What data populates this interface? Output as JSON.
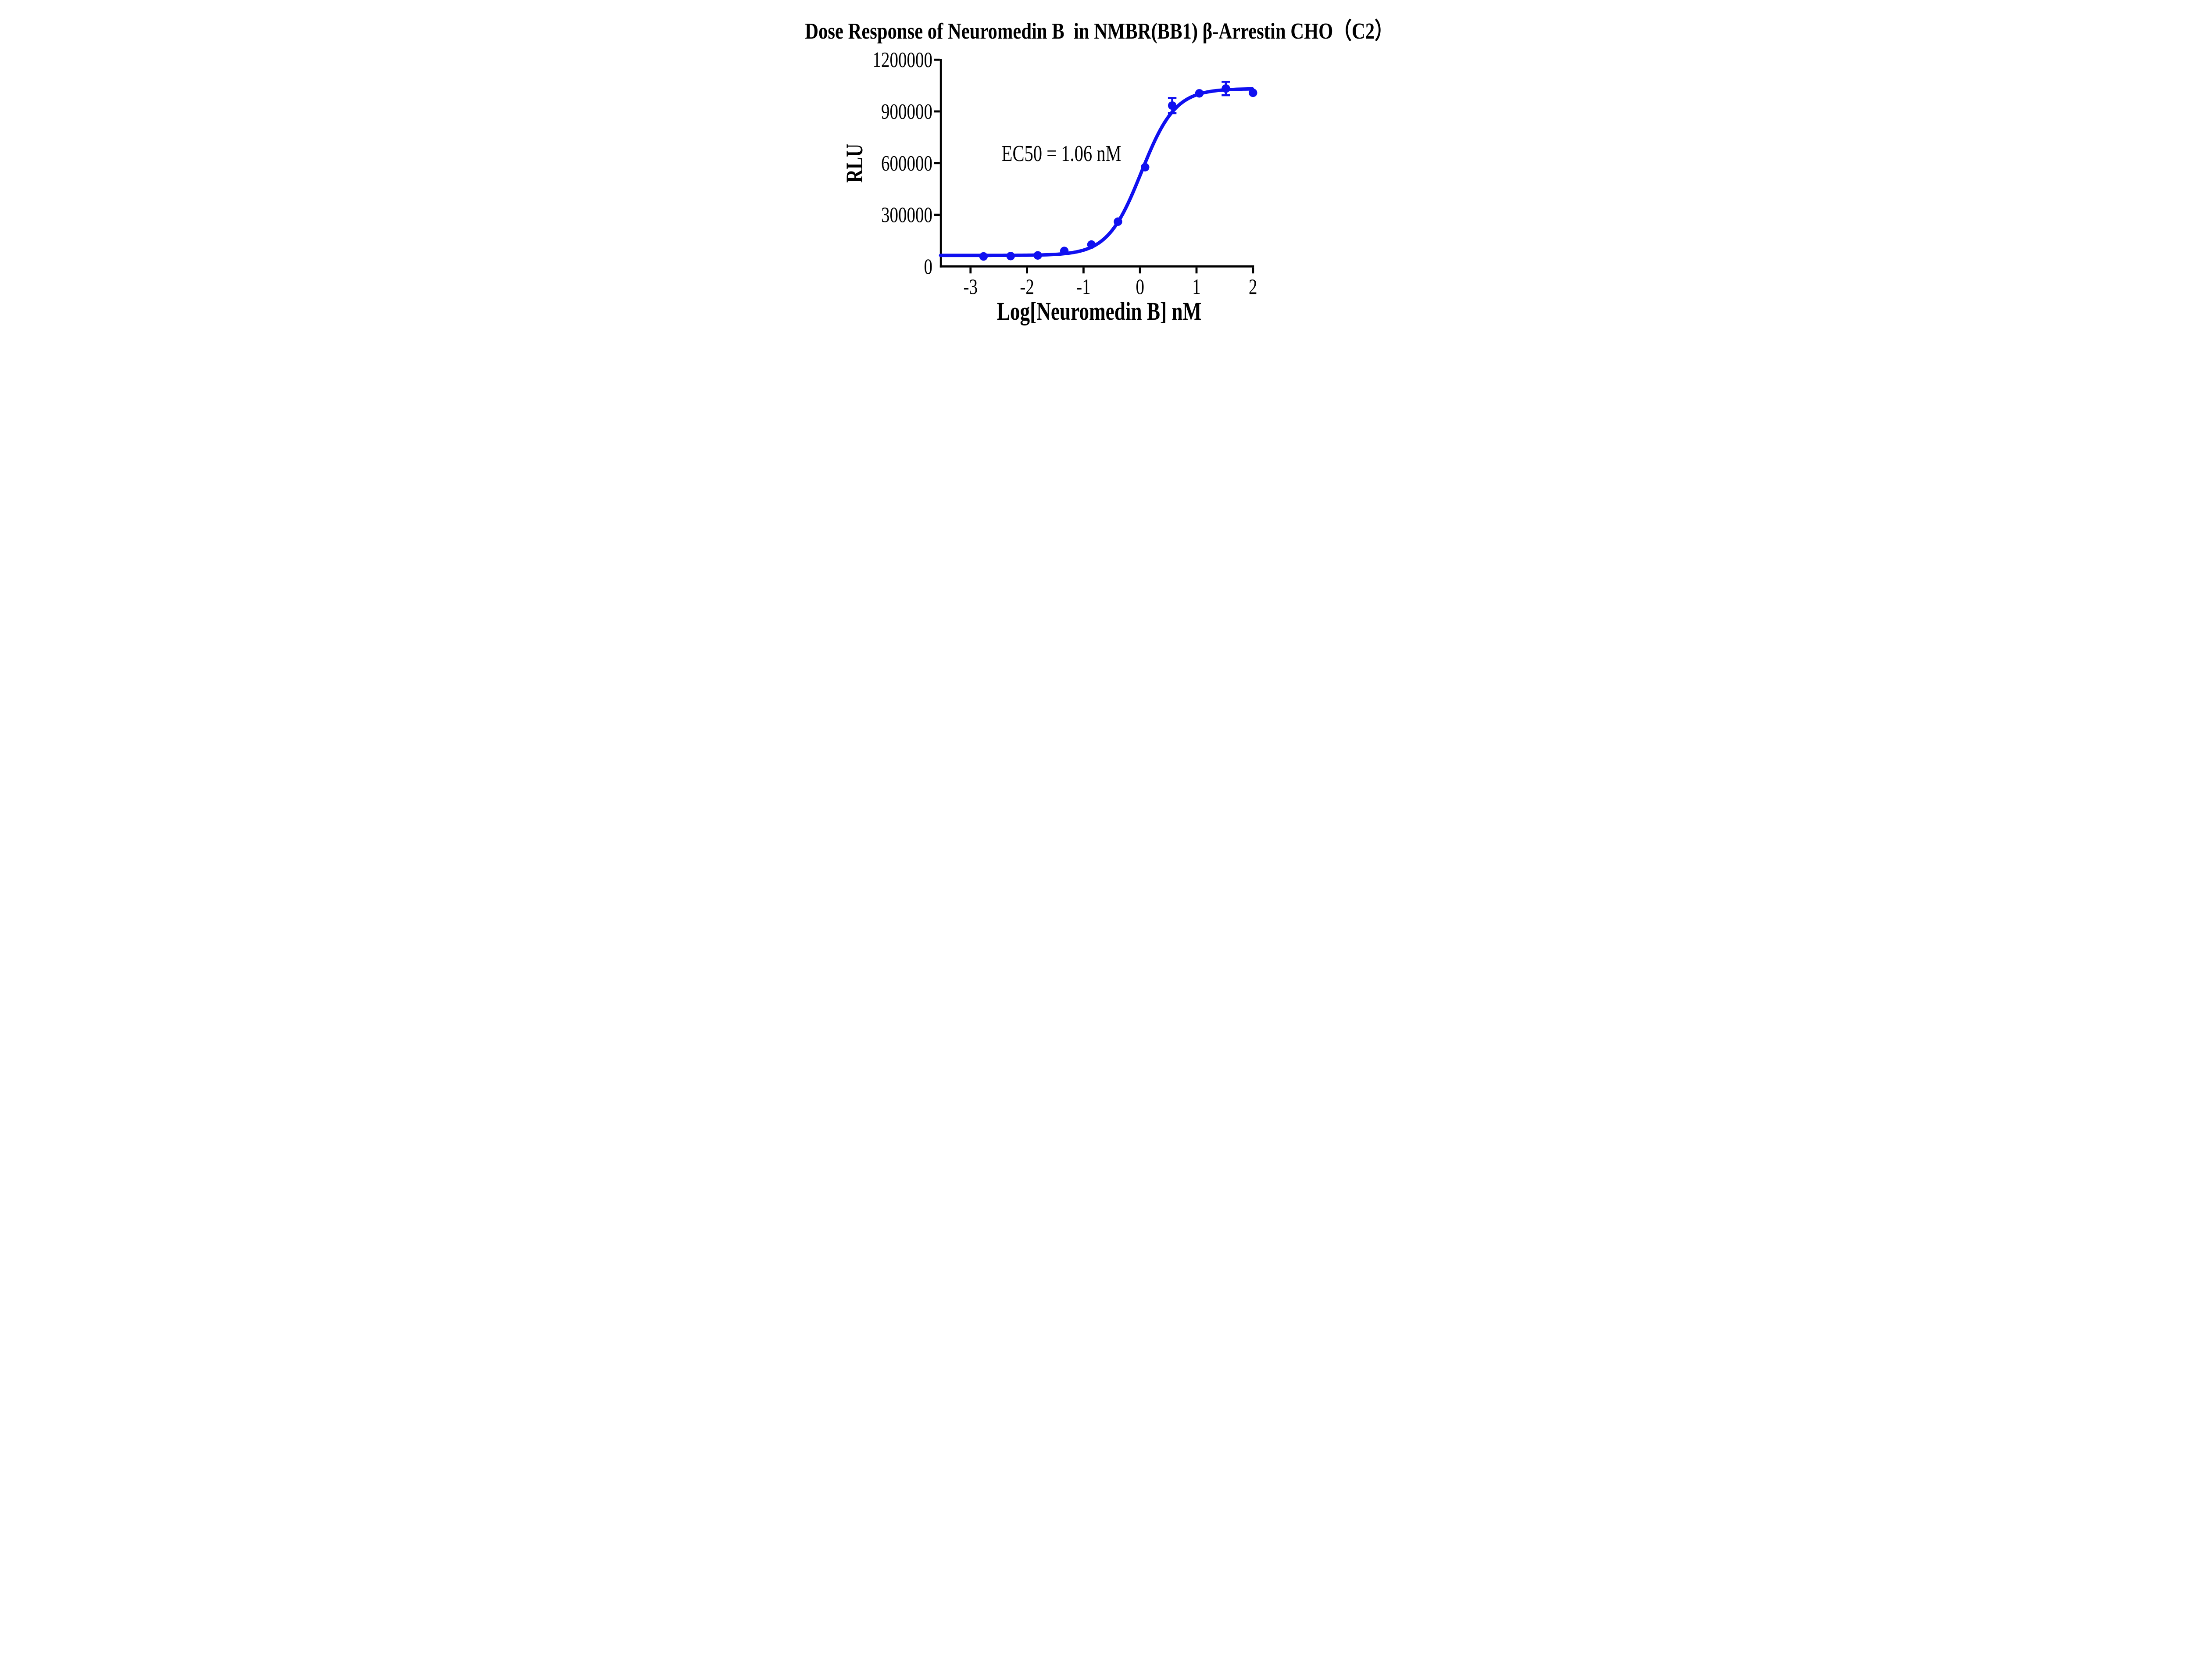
{
  "figure": {
    "background": "#FFFFFF"
  },
  "chart_data": {
    "type": "scatter",
    "title": "Dose Response of Neuromedin B  in NMBR(BB1) β-Arrestin CHO（C2）",
    "xlabel": "Log[Neuromedin B] nM",
    "ylabel": "RLU",
    "xlim": [
      -3.53,
      2.0
    ],
    "ylim": [
      0,
      1200000
    ],
    "x_ticks": [
      -3,
      -2,
      -1,
      0,
      1,
      2
    ],
    "x_tick_labels": [
      "-3",
      "-2",
      "-1",
      "0",
      "1",
      "2"
    ],
    "y_ticks": [
      0,
      300000,
      600000,
      900000,
      1200000
    ],
    "y_tick_labels": [
      "0",
      "300000",
      "600000",
      "900000",
      "1200000"
    ],
    "grid": false,
    "legend": false,
    "colors": {
      "curve": "#1010F0",
      "axis": "#000000",
      "text": "#000000"
    },
    "series": [
      {
        "name": "Neuromedin B",
        "marker": "circle",
        "color": "#1010F0",
        "x": [
          -2.77,
          -2.29,
          -1.81,
          -1.34,
          -0.86,
          -0.39,
          0.09,
          0.57,
          1.05,
          1.52,
          2.0
        ],
        "y": [
          58000,
          60000,
          64000,
          90000,
          127000,
          260000,
          576000,
          934000,
          1005000,
          1033000,
          1008000
        ],
        "y_err": [
          0,
          0,
          0,
          0,
          0,
          0,
          0,
          44000,
          0,
          39000,
          0
        ]
      }
    ],
    "fit_curve": {
      "model": "4PL sigmoid",
      "bottom": 64000,
      "top": 1032000,
      "log_ec50": 0.025,
      "hill": 1.45,
      "x_start": -3.53,
      "x_end": 2.0
    },
    "annotation": {
      "text": "EC50 = 1.06 nM",
      "x": -1.39,
      "y": 655000
    }
  }
}
